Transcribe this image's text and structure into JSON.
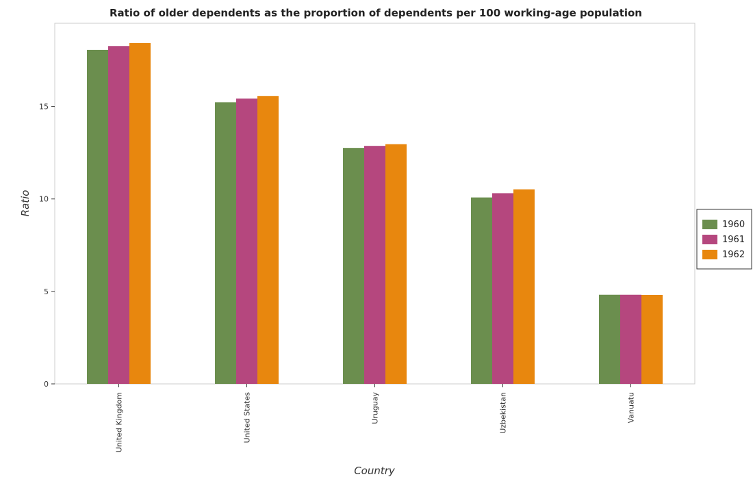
{
  "chart_data": {
    "type": "bar",
    "title": "Ratio of older dependents as the proportion of dependents per 100 working-age population",
    "xlabel": "Country",
    "ylabel": "Ratio",
    "categories": [
      "United Kingdom",
      "United States",
      "Uruguay",
      "Uzbekistan",
      "Vanuatu"
    ],
    "series": [
      {
        "name": "1960",
        "color": "#6b8e4e",
        "values": [
          18.06,
          15.23,
          12.76,
          10.08,
          4.82
        ]
      },
      {
        "name": "1961",
        "color": "#b5477e",
        "values": [
          18.27,
          15.43,
          12.87,
          10.31,
          4.82
        ]
      },
      {
        "name": "1962",
        "color": "#e8870e",
        "values": [
          18.43,
          15.57,
          12.96,
          10.52,
          4.81
        ]
      }
    ],
    "ylim": [
      0,
      19.5
    ],
    "yticks": [
      0,
      5,
      10,
      15
    ],
    "grid": false,
    "legend_position": "right"
  }
}
